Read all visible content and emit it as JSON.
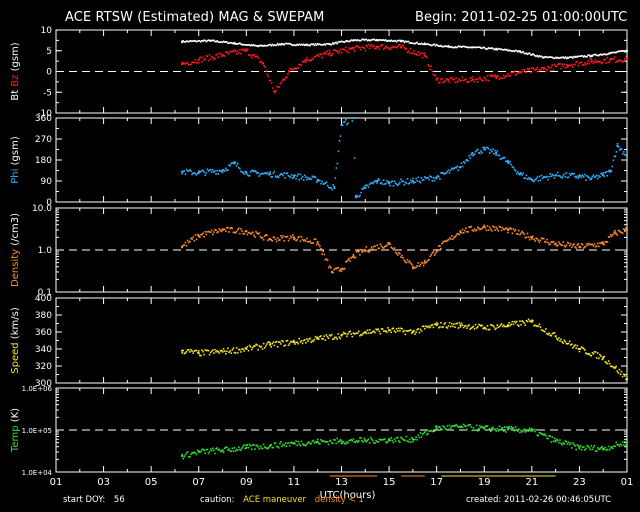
{
  "header": {
    "title": "ACE RTSW (Estimated) MAG & SWEPAM",
    "begin": "Begin: 2011-02-25 01:00:00UTC"
  },
  "footer": {
    "start_doy_label": "start DOY:",
    "start_doy": "56",
    "caution_label": "caution:",
    "caution_maneuver": "ACE maneuver",
    "caution_density": "density < 1",
    "created": "created: 2011-02-26 00:46:05UTC"
  },
  "colors": {
    "bt": "#ffffff",
    "bz": "#ff1a1a",
    "phi": "#33b0ff",
    "density": "#ff8a2a",
    "speed": "#f2e22a",
    "temp": "#33dd33",
    "caution_maneuver": "#f2e22a",
    "caution_density": "#ff8a2a"
  },
  "chart_data": {
    "type": "scatter",
    "xlabel": "UTC(hours)",
    "x_tick_labels": [
      "01",
      "03",
      "05",
      "07",
      "09",
      "11",
      "13",
      "15",
      "17",
      "19",
      "21",
      "23",
      "01"
    ],
    "panels": [
      {
        "id": "mag",
        "ylabel_parts": [
          "Bt",
          "Bz",
          "(gsm)"
        ],
        "ylim": [
          -10,
          10
        ],
        "y_ticks": [
          {
            "v": 10,
            "label": "10"
          },
          {
            "v": 5,
            "label": "5"
          },
          {
            "v": 0,
            "label": "0"
          },
          {
            "v": -5,
            "label": "-5"
          },
          {
            "v": -10,
            "label": "-10"
          }
        ],
        "ref_line": 0,
        "series": [
          {
            "name": "Bt",
            "color": "#ffffff",
            "points": [
              [
                6.3,
                7.2
              ],
              [
                7.5,
                7.4
              ],
              [
                8.5,
                6.8
              ],
              [
                9.5,
                6.1
              ],
              [
                10.5,
                6.6
              ],
              [
                11.5,
                6.4
              ],
              [
                12.5,
                6.6
              ],
              [
                13.5,
                7.5
              ],
              [
                14.5,
                7.6
              ],
              [
                15.5,
                7.3
              ],
              [
                16.5,
                6.6
              ],
              [
                17.5,
                6.0
              ],
              [
                18.5,
                5.8
              ],
              [
                19.5,
                5.4
              ],
              [
                20.5,
                4.8
              ],
              [
                21.5,
                3.4
              ],
              [
                22.5,
                3.3
              ],
              [
                23.5,
                3.8
              ],
              [
                24.3,
                4.4
              ],
              [
                25.0,
                5.0
              ]
            ]
          },
          {
            "name": "Bz",
            "color": "#ff1a1a",
            "points": [
              [
                6.3,
                1.8
              ],
              [
                7.0,
                2.8
              ],
              [
                8.0,
                4.0
              ],
              [
                9.0,
                5.0
              ],
              [
                9.7,
                2.0
              ],
              [
                10.2,
                -5.0
              ],
              [
                10.8,
                0.0
              ],
              [
                11.5,
                2.8
              ],
              [
                12.5,
                4.4
              ],
              [
                13.5,
                5.5
              ],
              [
                14.5,
                6.0
              ],
              [
                15.5,
                5.8
              ],
              [
                16.5,
                3.8
              ],
              [
                17.0,
                -2.0
              ],
              [
                17.5,
                -2.2
              ],
              [
                18.5,
                -2.0
              ],
              [
                19.5,
                -1.3
              ],
              [
                20.5,
                -0.2
              ],
              [
                21.5,
                0.6
              ],
              [
                22.5,
                1.6
              ],
              [
                23.5,
                2.4
              ],
              [
                24.3,
                2.8
              ],
              [
                25.0,
                3.0
              ]
            ]
          }
        ]
      },
      {
        "id": "phi",
        "ylabel_parts": [
          "Phi",
          "(gsm)"
        ],
        "ylim": [
          0,
          360
        ],
        "y_ticks": [
          {
            "v": 360,
            "label": "360"
          },
          {
            "v": 270,
            "label": "270"
          },
          {
            "v": 180,
            "label": "180"
          },
          {
            "v": 90,
            "label": "90"
          },
          {
            "v": 0,
            "label": "0"
          }
        ],
        "series": [
          {
            "name": "Phi",
            "color": "#33b0ff",
            "points": [
              [
                6.3,
                130
              ],
              [
                7.0,
                125
              ],
              [
                8.0,
                135
              ],
              [
                8.5,
                165
              ],
              [
                9.0,
                125
              ],
              [
                10.0,
                120
              ],
              [
                11.0,
                112
              ],
              [
                12.0,
                95
              ],
              [
                12.7,
                60
              ],
              [
                13.0,
                330
              ],
              [
                13.5,
                360
              ],
              [
                13.6,
                20
              ],
              [
                14.0,
                60
              ],
              [
                14.5,
                90
              ],
              [
                15.0,
                80
              ],
              [
                16.0,
                90
              ],
              [
                17.0,
                105
              ],
              [
                18.0,
                150
              ],
              [
                18.5,
                210
              ],
              [
                19.0,
                225
              ],
              [
                19.5,
                210
              ],
              [
                20.0,
                170
              ],
              [
                20.5,
                120
              ],
              [
                21.0,
                95
              ],
              [
                22.0,
                115
              ],
              [
                23.0,
                110
              ],
              [
                23.5,
                100
              ],
              [
                24.0,
                115
              ],
              [
                24.3,
                130
              ],
              [
                24.6,
                240
              ],
              [
                25.0,
                200
              ]
            ]
          }
        ]
      },
      {
        "id": "density",
        "ylabel_parts": [
          "Density",
          "(/cm3)"
        ],
        "scale": "log",
        "ylim": [
          0.1,
          10.0
        ],
        "y_ticks": [
          {
            "v": 10.0,
            "label": "10.0"
          },
          {
            "v": 1.0,
            "label": "1.0"
          },
          {
            "v": 0.1,
            "label": "0.1"
          }
        ],
        "ref_line": 1.0,
        "series": [
          {
            "name": "Density",
            "color": "#ff8a2a",
            "points": [
              [
                6.3,
                1.2
              ],
              [
                7.0,
                2.2
              ],
              [
                8.0,
                3.0
              ],
              [
                9.0,
                2.8
              ],
              [
                10.0,
                1.8
              ],
              [
                11.0,
                2.0
              ],
              [
                12.0,
                1.5
              ],
              [
                12.6,
                0.3
              ],
              [
                13.0,
                0.35
              ],
              [
                13.5,
                0.7
              ],
              [
                14.0,
                1.0
              ],
              [
                15.0,
                1.4
              ],
              [
                16.0,
                0.4
              ],
              [
                16.5,
                0.5
              ],
              [
                17.0,
                1.0
              ],
              [
                18.0,
                2.8
              ],
              [
                19.0,
                3.5
              ],
              [
                20.0,
                3.0
              ],
              [
                21.0,
                2.0
              ],
              [
                22.0,
                1.4
              ],
              [
                23.0,
                1.2
              ],
              [
                24.0,
                1.4
              ],
              [
                24.5,
                2.5
              ],
              [
                25.0,
                3.0
              ]
            ]
          }
        ]
      },
      {
        "id": "speed",
        "ylabel_parts": [
          "Speed",
          "(km/s)"
        ],
        "ylim": [
          300,
          400
        ],
        "y_ticks": [
          {
            "v": 400,
            "label": "400"
          },
          {
            "v": 380,
            "label": "380"
          },
          {
            "v": 360,
            "label": "360"
          },
          {
            "v": 340,
            "label": "340"
          },
          {
            "v": 320,
            "label": "320"
          },
          {
            "v": 300,
            "label": "300"
          }
        ],
        "series": [
          {
            "name": "Speed",
            "color": "#f2e22a",
            "points": [
              [
                6.3,
                338
              ],
              [
                7.0,
                335
              ],
              [
                8.0,
                337
              ],
              [
                9.0,
                340
              ],
              [
                10.0,
                345
              ],
              [
                11.0,
                348
              ],
              [
                12.0,
                352
              ],
              [
                13.0,
                356
              ],
              [
                14.0,
                360
              ],
              [
                15.0,
                362
              ],
              [
                16.0,
                360
              ],
              [
                17.0,
                368
              ],
              [
                18.0,
                368
              ],
              [
                19.0,
                365
              ],
              [
                20.0,
                368
              ],
              [
                21.0,
                372
              ],
              [
                22.0,
                355
              ],
              [
                23.0,
                340
              ],
              [
                24.0,
                330
              ],
              [
                24.5,
                318
              ],
              [
                25.0,
                305
              ]
            ]
          }
        ]
      },
      {
        "id": "temp",
        "ylabel_parts": [
          "Temp",
          "(K)"
        ],
        "scale": "log",
        "ylim": [
          10000,
          1000000
        ],
        "y_ticks": [
          {
            "v": 1000000,
            "label": "1.0E+06"
          },
          {
            "v": 100000,
            "label": "1.0E+05"
          },
          {
            "v": 10000,
            "label": "1.0E+04"
          }
        ],
        "ref_line": 100000,
        "series": [
          {
            "name": "Temp",
            "color": "#33dd33",
            "points": [
              [
                6.3,
                24000
              ],
              [
                7.0,
                30000
              ],
              [
                8.0,
                33000
              ],
              [
                9.0,
                38000
              ],
              [
                10.0,
                42000
              ],
              [
                11.0,
                48000
              ],
              [
                12.0,
                52000
              ],
              [
                13.0,
                54000
              ],
              [
                14.0,
                56000
              ],
              [
                15.0,
                58000
              ],
              [
                16.0,
                60000
              ],
              [
                17.0,
                110000
              ],
              [
                18.0,
                118000
              ],
              [
                19.0,
                108000
              ],
              [
                20.0,
                104000
              ],
              [
                21.0,
                96000
              ],
              [
                22.0,
                55000
              ],
              [
                23.0,
                38000
              ],
              [
                24.0,
                36000
              ],
              [
                25.0,
                50000
              ]
            ]
          }
        ]
      }
    ]
  }
}
